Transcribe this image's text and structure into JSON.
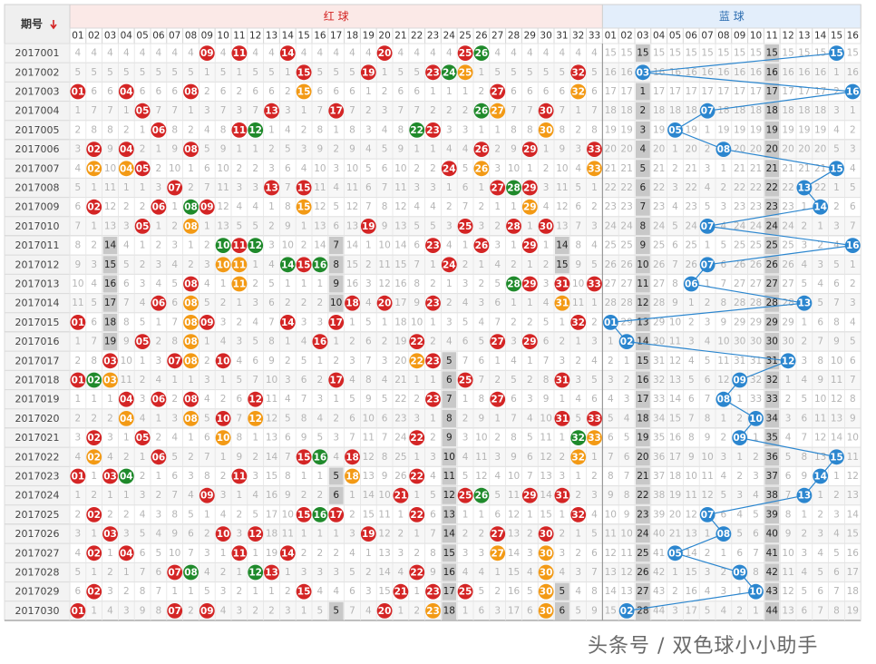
{
  "header": {
    "period_label": "期号",
    "sort_icon": "down-arrow-icon",
    "red_zone_label": "红 球",
    "blue_zone_label": "蓝 球"
  },
  "colors": {
    "red_ball": "#d42525",
    "green_ball": "#1f8a2b",
    "orange_ball": "#f39a15",
    "blue_ball": "#2b86cf",
    "missing_text": "#b5b5b5",
    "gray_column": "#c8c8c8",
    "red_header_bg": "#fbe9e7",
    "blue_header_bg": "#e3eefb"
  },
  "watermark": "头条号 / 双色球小小助手",
  "chart_data": {
    "type": "table",
    "red_numbers": [
      "01",
      "02",
      "03",
      "04",
      "05",
      "06",
      "07",
      "08",
      "09",
      "10",
      "11",
      "12",
      "13",
      "14",
      "15",
      "16",
      "17",
      "18",
      "19",
      "20",
      "21",
      "22",
      "23",
      "24",
      "25",
      "26",
      "27",
      "28",
      "29",
      "30",
      "31",
      "32",
      "33"
    ],
    "blue_numbers": [
      "01",
      "02",
      "03",
      "04",
      "05",
      "06",
      "07",
      "08",
      "09",
      "10",
      "11",
      "12",
      "13",
      "14",
      "15",
      "16"
    ],
    "draws": [
      {
        "period": "2017001",
        "reds": [
          9,
          11,
          14,
          20,
          25,
          26
        ],
        "blue": 15
      },
      {
        "period": "2017002",
        "reds": [
          15,
          19,
          23,
          24,
          25,
          32
        ],
        "blue": 3
      },
      {
        "period": "2017003",
        "reds": [
          1,
          4,
          8,
          15,
          27,
          32
        ],
        "blue": 16
      },
      {
        "period": "2017004",
        "reds": [
          5,
          13,
          17,
          26,
          27,
          30
        ],
        "blue": 7
      },
      {
        "period": "2017005",
        "reds": [
          6,
          11,
          12,
          22,
          23,
          30
        ],
        "blue": 5
      },
      {
        "period": "2017006",
        "reds": [
          2,
          4,
          8,
          26,
          29,
          33
        ],
        "blue": 8
      },
      {
        "period": "2017007",
        "reds": [
          2,
          4,
          5,
          24,
          26,
          33
        ],
        "blue": 15
      },
      {
        "period": "2017008",
        "reds": [
          7,
          13,
          15,
          27,
          28,
          29
        ],
        "blue": 13
      },
      {
        "period": "2017009",
        "reds": [
          2,
          6,
          8,
          9,
          15,
          29
        ],
        "blue": 14
      },
      {
        "period": "2017010",
        "reds": [
          5,
          8,
          19,
          25,
          28,
          30
        ],
        "blue": 7
      },
      {
        "period": "2017011",
        "reds": [
          10,
          11,
          12,
          23,
          26,
          29
        ],
        "blue": 16
      },
      {
        "period": "2017012",
        "reds": [
          10,
          11,
          14,
          15,
          16,
          24
        ],
        "blue": 7
      },
      {
        "period": "2017013",
        "reds": [
          8,
          11,
          28,
          29,
          31,
          33
        ],
        "blue": 6
      },
      {
        "period": "2017014",
        "reds": [
          6,
          8,
          18,
          20,
          23,
          31
        ],
        "blue": 13
      },
      {
        "period": "2017015",
        "reds": [
          1,
          8,
          9,
          14,
          17,
          32
        ],
        "blue": 1
      },
      {
        "period": "2017016",
        "reds": [
          5,
          8,
          16,
          22,
          27,
          29
        ],
        "blue": 2
      },
      {
        "period": "2017017",
        "reds": [
          3,
          7,
          8,
          10,
          22,
          23
        ],
        "blue": 12
      },
      {
        "period": "2017018",
        "reds": [
          1,
          2,
          3,
          17,
          25,
          31
        ],
        "blue": 9
      },
      {
        "period": "2017019",
        "reds": [
          4,
          6,
          8,
          12,
          23,
          27
        ],
        "blue": 8
      },
      {
        "period": "2017020",
        "reds": [
          4,
          8,
          10,
          12,
          31,
          33
        ],
        "blue": 10
      },
      {
        "period": "2017021",
        "reds": [
          2,
          5,
          10,
          22,
          32,
          33
        ],
        "blue": 9
      },
      {
        "period": "2017022",
        "reds": [
          2,
          6,
          15,
          16,
          18,
          32
        ],
        "blue": 15
      },
      {
        "period": "2017023",
        "reds": [
          1,
          3,
          4,
          11,
          18,
          22
        ],
        "blue": 14
      },
      {
        "period": "2017024",
        "reds": [
          9,
          21,
          25,
          26,
          29,
          31
        ],
        "blue": 13
      },
      {
        "period": "2017025",
        "reds": [
          2,
          15,
          16,
          17,
          22,
          32
        ],
        "blue": 7
      },
      {
        "period": "2017026",
        "reds": [
          3,
          10,
          12,
          19,
          27,
          30
        ],
        "blue": 8
      },
      {
        "period": "2017027",
        "reds": [
          2,
          4,
          11,
          14,
          27,
          30
        ],
        "blue": 5
      },
      {
        "period": "2017028",
        "reds": [
          7,
          8,
          12,
          13,
          22,
          30
        ],
        "blue": 9
      },
      {
        "period": "2017029",
        "reds": [
          2,
          15,
          21,
          23,
          25,
          30
        ],
        "blue": 10
      },
      {
        "period": "2017030",
        "reds": [
          1,
          7,
          9,
          20,
          23,
          30
        ],
        "blue": 2
      }
    ],
    "legend": "",
    "grid": true
  }
}
